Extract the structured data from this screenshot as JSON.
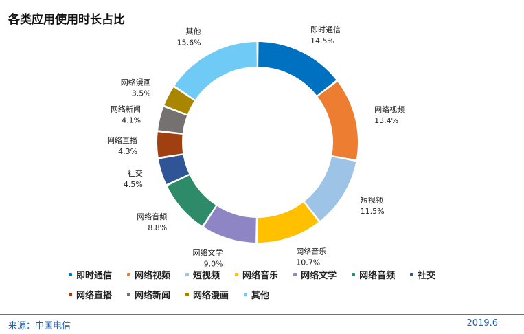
{
  "header": {
    "title": "各类应用使用时长占比"
  },
  "chart_data": {
    "type": "pie",
    "variant": "donut",
    "title": "各类应用使用时长占比",
    "unit": "%",
    "categories": [
      "即时通信",
      "网络视频",
      "短视频",
      "网络音乐",
      "网络文学",
      "网络音频",
      "社交",
      "网络直播",
      "网络新闻",
      "网络漫画",
      "其他"
    ],
    "values": [
      14.5,
      13.4,
      11.5,
      10.7,
      9.0,
      8.8,
      4.5,
      4.3,
      4.1,
      3.5,
      15.6
    ],
    "labels": [
      "14.5%",
      "13.4%",
      "11.5%",
      "10.7%",
      "9.0%",
      "8.8%",
      "4.5%",
      "4.3%",
      "4.1%",
      "3.5%",
      "15.6%"
    ],
    "colors": [
      "#0070c0",
      "#ed7d31",
      "#9dc3e6",
      "#ffc000",
      "#8e86c4",
      "#2e8b6a",
      "#2f5597",
      "#a04010",
      "#767171",
      "#a98600",
      "#6fcbf5"
    ],
    "legend_position": "bottom"
  },
  "footer": {
    "source": "来源：中国电信",
    "date": "2019.6"
  }
}
